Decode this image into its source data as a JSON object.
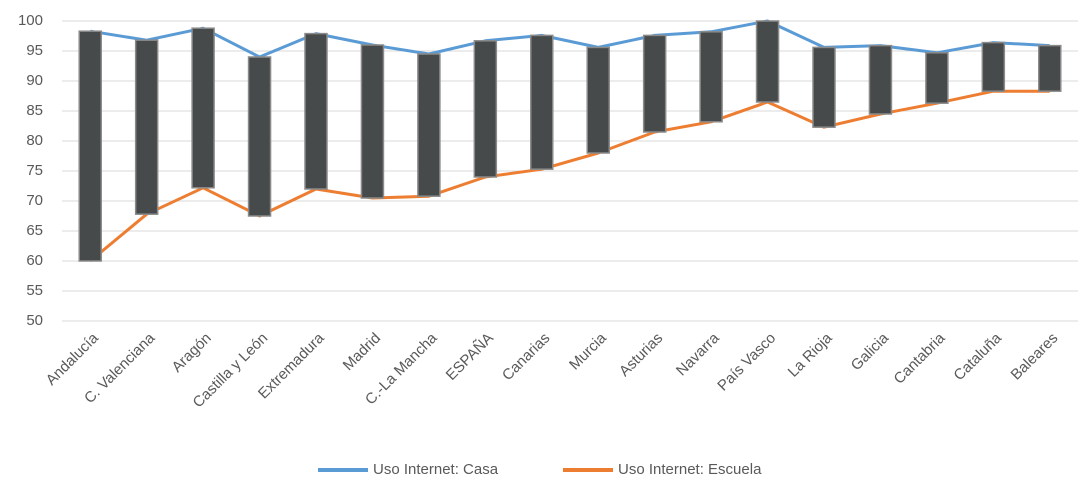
{
  "chart_data": {
    "type": "line",
    "categories": [
      "Andalucía",
      "C. Valenciana",
      "Aragón",
      "Castilla y León",
      "Extremadura",
      "Madrid",
      "C.-La Mancha",
      "ESPAÑA",
      "Canarias",
      "Murcia",
      "Asturias",
      "Navarra",
      "País Vasco",
      "La Rioja",
      "Galicia",
      "Cantabria",
      "Cataluña",
      "Baleares"
    ],
    "series": [
      {
        "name": "Uso Internet: Casa",
        "color": "#5b9bd5",
        "values": [
          98.3,
          96.8,
          98.8,
          94,
          97.9,
          96,
          94.5,
          96.7,
          97.6,
          95.6,
          97.6,
          98.2,
          100,
          95.6,
          95.9,
          94.7,
          96.4,
          95.9
        ]
      },
      {
        "name": "Uso Internet: Escuela",
        "color": "#ed7d31",
        "values": [
          60,
          67.8,
          72.2,
          67.5,
          72,
          70.5,
          70.8,
          74,
          75.3,
          78,
          81.5,
          83.2,
          86.5,
          82.3,
          84.5,
          86.3,
          88.3,
          88.3
        ]
      }
    ],
    "high_low_bars": true,
    "bar_color": "#474a4a",
    "ylim": [
      50,
      100
    ],
    "yticks": [
      50,
      55,
      60,
      65,
      70,
      75,
      80,
      85,
      90,
      95,
      100
    ],
    "grid": true,
    "legend": "bottom"
  }
}
